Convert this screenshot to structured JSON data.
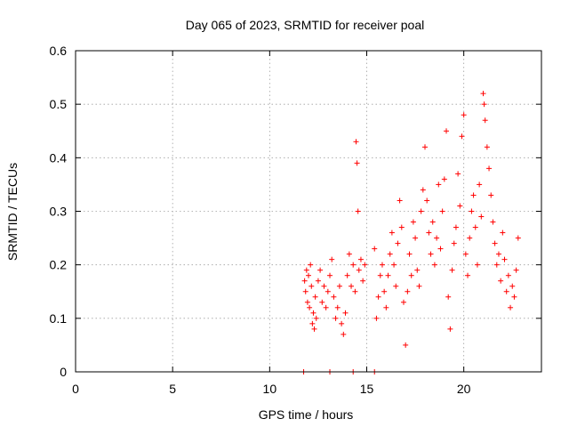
{
  "chart_data": {
    "type": "scatter",
    "title": "Day 065 of 2023, SRMTID for receiver poal",
    "xlabel": "GPS time / hours",
    "ylabel": "SRMTID / TECUs",
    "xlim": [
      0,
      24
    ],
    "ylim": [
      0,
      0.6
    ],
    "x_ticks": [
      0,
      5,
      10,
      15,
      20
    ],
    "x_tick_labels": [
      "0",
      "5",
      "10",
      "15",
      "20"
    ],
    "y_ticks": [
      0,
      0.1,
      0.2,
      0.3,
      0.4,
      0.5,
      0.6
    ],
    "y_tick_labels": [
      "0",
      "0.1",
      "0.2",
      "0.3",
      "0.4",
      "0.5",
      "0.6"
    ],
    "grid": true,
    "marker": "+",
    "series": [
      {
        "name": "SRMTID",
        "color": "#ff0000",
        "points": [
          [
            11.8,
            0.17
          ],
          [
            11.85,
            0.15
          ],
          [
            11.9,
            0.19
          ],
          [
            11.95,
            0.13
          ],
          [
            12.0,
            0.18
          ],
          [
            12.05,
            0.12
          ],
          [
            12.1,
            0.2
          ],
          [
            12.15,
            0.16
          ],
          [
            12.2,
            0.09
          ],
          [
            12.25,
            0.11
          ],
          [
            12.3,
            0.08
          ],
          [
            12.35,
            0.14
          ],
          [
            12.4,
            0.1
          ],
          [
            12.5,
            0.17
          ],
          [
            12.6,
            0.19
          ],
          [
            12.7,
            0.13
          ],
          [
            12.8,
            0.16
          ],
          [
            12.9,
            0.12
          ],
          [
            13.0,
            0.15
          ],
          [
            13.1,
            0.18
          ],
          [
            13.2,
            0.21
          ],
          [
            13.3,
            0.14
          ],
          [
            13.4,
            0.1
          ],
          [
            13.5,
            0.12
          ],
          [
            13.6,
            0.16
          ],
          [
            13.7,
            0.09
          ],
          [
            13.8,
            0.07
          ],
          [
            13.9,
            0.11
          ],
          [
            14.0,
            0.18
          ],
          [
            14.1,
            0.22
          ],
          [
            14.2,
            0.16
          ],
          [
            14.3,
            0.2
          ],
          [
            14.4,
            0.15
          ],
          [
            14.45,
            0.43
          ],
          [
            14.5,
            0.39
          ],
          [
            14.55,
            0.3
          ],
          [
            14.6,
            0.19
          ],
          [
            14.7,
            0.21
          ],
          [
            14.8,
            0.17
          ],
          [
            14.9,
            0.2
          ],
          [
            15.4,
            0.23
          ],
          [
            15.5,
            0.1
          ],
          [
            15.6,
            0.14
          ],
          [
            15.7,
            0.18
          ],
          [
            15.8,
            0.2
          ],
          [
            15.9,
            0.15
          ],
          [
            16.0,
            0.12
          ],
          [
            16.1,
            0.18
          ],
          [
            16.2,
            0.22
          ],
          [
            16.3,
            0.26
          ],
          [
            16.4,
            0.2
          ],
          [
            16.5,
            0.16
          ],
          [
            16.6,
            0.24
          ],
          [
            16.7,
            0.32
          ],
          [
            16.8,
            0.27
          ],
          [
            16.9,
            0.13
          ],
          [
            17.0,
            0.05
          ],
          [
            17.1,
            0.15
          ],
          [
            17.2,
            0.22
          ],
          [
            17.3,
            0.18
          ],
          [
            17.4,
            0.28
          ],
          [
            17.5,
            0.25
          ],
          [
            17.6,
            0.19
          ],
          [
            17.7,
            0.16
          ],
          [
            17.8,
            0.3
          ],
          [
            17.9,
            0.34
          ],
          [
            18.0,
            0.42
          ],
          [
            18.1,
            0.32
          ],
          [
            18.2,
            0.26
          ],
          [
            18.3,
            0.22
          ],
          [
            18.4,
            0.28
          ],
          [
            18.5,
            0.2
          ],
          [
            18.6,
            0.25
          ],
          [
            18.7,
            0.35
          ],
          [
            18.8,
            0.23
          ],
          [
            18.9,
            0.3
          ],
          [
            19.0,
            0.36
          ],
          [
            19.1,
            0.45
          ],
          [
            19.2,
            0.14
          ],
          [
            19.3,
            0.08
          ],
          [
            19.4,
            0.19
          ],
          [
            19.5,
            0.24
          ],
          [
            19.6,
            0.27
          ],
          [
            19.7,
            0.37
          ],
          [
            19.8,
            0.31
          ],
          [
            19.9,
            0.44
          ],
          [
            20.0,
            0.48
          ],
          [
            20.1,
            0.22
          ],
          [
            20.2,
            0.18
          ],
          [
            20.3,
            0.25
          ],
          [
            20.4,
            0.3
          ],
          [
            20.5,
            0.33
          ],
          [
            20.6,
            0.27
          ],
          [
            20.7,
            0.2
          ],
          [
            20.8,
            0.35
          ],
          [
            20.9,
            0.29
          ],
          [
            21.0,
            0.52
          ],
          [
            21.05,
            0.5
          ],
          [
            21.1,
            0.47
          ],
          [
            21.2,
            0.42
          ],
          [
            21.3,
            0.38
          ],
          [
            21.4,
            0.33
          ],
          [
            21.5,
            0.28
          ],
          [
            21.6,
            0.24
          ],
          [
            21.7,
            0.2
          ],
          [
            21.8,
            0.22
          ],
          [
            21.9,
            0.17
          ],
          [
            22.0,
            0.26
          ],
          [
            22.1,
            0.21
          ],
          [
            22.2,
            0.15
          ],
          [
            22.3,
            0.18
          ],
          [
            22.4,
            0.12
          ],
          [
            22.5,
            0.16
          ],
          [
            22.6,
            0.14
          ],
          [
            22.7,
            0.19
          ],
          [
            22.8,
            0.25
          ]
        ],
        "zero_points": [
          [
            11.75,
            0.0
          ],
          [
            13.1,
            0.0
          ],
          [
            14.3,
            0.0
          ],
          [
            15.4,
            0.0
          ]
        ]
      }
    ]
  }
}
